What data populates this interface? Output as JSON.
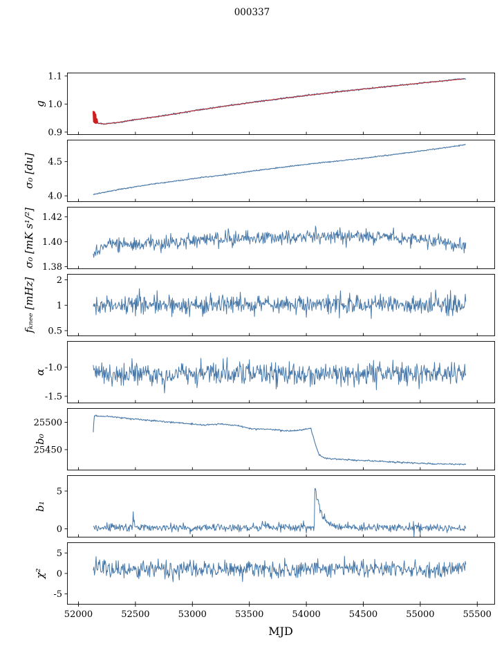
{
  "title": "000337",
  "xlabel": "MJD",
  "colors": {
    "line": "#4878a8",
    "fit": "#cc2020",
    "axis": "#000000"
  },
  "layout": {
    "xlim": [
      51900,
      55650
    ],
    "xticks": [
      52000,
      52500,
      53000,
      53500,
      54000,
      54500,
      55000,
      55500
    ],
    "xticklabels": [
      "52000",
      "52500",
      "53000",
      "53500",
      "54000",
      "54500",
      "55000",
      "55500"
    ]
  },
  "chart_data": [
    {
      "name": "gain",
      "type": "line",
      "ylabel": "g",
      "yscale": "linear",
      "ylim": [
        0.89,
        1.112
      ],
      "yticks": [
        0.9,
        1.0,
        1.1
      ],
      "yticklabels": [
        "0.9",
        "1.0",
        "1.1"
      ],
      "show_xticklabels": false,
      "series": [
        {
          "name": "gain-data",
          "color": "#4878a8",
          "width": 1.3,
          "seed": 11,
          "step": 4,
          "noise": 0.0012,
          "base": [
            [
              52130,
              0.966
            ],
            [
              52148,
              0.934
            ],
            [
              52220,
              0.9285
            ],
            [
              52350,
              0.9345
            ],
            [
              52500,
              0.9445
            ],
            [
              52750,
              0.9585
            ],
            [
              53000,
              0.9755
            ],
            [
              53250,
              0.9905
            ],
            [
              53500,
              1.0045
            ],
            [
              53750,
              1.018
            ],
            [
              54000,
              1.0305
            ],
            [
              54250,
              1.0425
            ],
            [
              54500,
              1.0535
            ],
            [
              54750,
              1.064
            ],
            [
              55000,
              1.0745
            ],
            [
              55200,
              1.0825
            ],
            [
              55400,
              1.0905
            ]
          ]
        },
        {
          "name": "gain-fit",
          "color": "#cc2020",
          "width": 1.0,
          "seed": 12,
          "step": 25,
          "noise": 0,
          "base": [
            [
              52130,
              0.966
            ],
            [
              52148,
              0.934
            ],
            [
              52220,
              0.9285
            ],
            [
              52350,
              0.9345
            ],
            [
              52500,
              0.9445
            ],
            [
              52750,
              0.9585
            ],
            [
              53000,
              0.9755
            ],
            [
              53250,
              0.9905
            ],
            [
              53500,
              1.0045
            ],
            [
              53750,
              1.018
            ],
            [
              54000,
              1.0305
            ],
            [
              54250,
              1.0425
            ],
            [
              54500,
              1.0535
            ],
            [
              54750,
              1.064
            ],
            [
              55000,
              1.0745
            ],
            [
              55200,
              1.0825
            ],
            [
              55400,
              1.0905
            ]
          ]
        },
        {
          "name": "gain-fit-start",
          "color": "#cc2020",
          "width": 2.6,
          "points": [
            [
              52132,
              0.975
            ],
            [
              52136,
              0.937
            ],
            [
              52140,
              0.97
            ],
            [
              52144,
              0.934
            ],
            [
              52149,
              0.963
            ],
            [
              52154,
              0.9325
            ],
            [
              52160,
              0.946
            ],
            [
              52166,
              0.9335
            ]
          ]
        }
      ]
    },
    {
      "name": "sigma0-du",
      "type": "line",
      "ylabel": "σ₀ [du]",
      "yscale": "linear",
      "ylim": [
        3.91,
        4.82
      ],
      "yticks": [
        4.0,
        4.5
      ],
      "yticklabels": [
        "4.0",
        "4.5"
      ],
      "show_xticklabels": false,
      "series": [
        {
          "name": "sigma0-du-data",
          "color": "#4878a8",
          "width": 1.1,
          "seed": 21,
          "step": 4,
          "noise": 0.004,
          "base": [
            [
              52130,
              4.02
            ],
            [
              52250,
              4.06
            ],
            [
              52400,
              4.105
            ],
            [
              52600,
              4.16
            ],
            [
              52800,
              4.205
            ],
            [
              53000,
              4.25
            ],
            [
              53250,
              4.3
            ],
            [
              53500,
              4.355
            ],
            [
              53750,
              4.41
            ],
            [
              54000,
              4.46
            ],
            [
              54250,
              4.505
            ],
            [
              54500,
              4.55
            ],
            [
              54750,
              4.6
            ],
            [
              55000,
              4.655
            ],
            [
              55200,
              4.7
            ],
            [
              55400,
              4.75
            ]
          ]
        }
      ]
    },
    {
      "name": "sigma0-mk",
      "type": "line",
      "ylabel": "σ₀ [mK s¹/²]",
      "yscale": "linear",
      "ylim": [
        1.378,
        1.428
      ],
      "yticks": [
        1.38,
        1.4,
        1.42
      ],
      "yticklabels": [
        "1.38",
        "1.40",
        "1.42"
      ],
      "show_xticklabels": false,
      "series": [
        {
          "name": "sigma0-mk-data",
          "color": "#4878a8",
          "width": 1.0,
          "seed": 31,
          "step": 5,
          "noise": 0.0028,
          "base": [
            [
              52130,
              1.389
            ],
            [
              52200,
              1.3955
            ],
            [
              52300,
              1.399
            ],
            [
              52450,
              1.3975
            ],
            [
              52600,
              1.3995
            ],
            [
              52800,
              1.3985
            ],
            [
              53000,
              1.4005
            ],
            [
              53200,
              1.4025
            ],
            [
              53400,
              1.4015
            ],
            [
              53700,
              1.4035
            ],
            [
              54000,
              1.4035
            ],
            [
              54300,
              1.4045
            ],
            [
              54600,
              1.4045
            ],
            [
              54900,
              1.4025
            ],
            [
              55100,
              1.4005
            ],
            [
              55300,
              1.3985
            ],
            [
              55400,
              1.397
            ]
          ]
        }
      ]
    },
    {
      "name": "fknee",
      "type": "line",
      "ylabel": "fₖₙₑₑ [mHz]",
      "yscale": "log",
      "ylim": [
        0.43,
        2.35
      ],
      "yticks": [
        2,
        1,
        0.5
      ],
      "yticklabels": [
        "2",
        "1",
        "0.5"
      ],
      "show_xticklabels": false,
      "series": [
        {
          "name": "fknee-data",
          "color": "#4878a8",
          "width": 1.0,
          "seed": 41,
          "step": 5,
          "lognoise": 0.13,
          "burst": {
            "p": 0.025,
            "max": 0.55
          },
          "base": [
            [
              52130,
              1.04
            ],
            [
              55400,
              1.0
            ]
          ]
        }
      ]
    },
    {
      "name": "alpha",
      "type": "line",
      "ylabel": "α",
      "yscale": "linear",
      "ylim": [
        -1.62,
        -0.55
      ],
      "yticks": [
        -1.0,
        -1.5
      ],
      "yticklabels": [
        "-1.0",
        "-1.5"
      ],
      "show_xticklabels": false,
      "series": [
        {
          "name": "alpha-data",
          "color": "#4878a8",
          "width": 1.0,
          "seed": 51,
          "step": 5,
          "noise": 0.095,
          "base": [
            [
              52130,
              -1.13
            ],
            [
              55400,
              -1.11
            ]
          ]
        }
      ]
    },
    {
      "name": "b0",
      "type": "line",
      "ylabel": "b₀",
      "yscale": "linear",
      "ylim": [
        25412,
        25526
      ],
      "yticks": [
        25450,
        25500
      ],
      "yticklabels": [
        "25450",
        "25500"
      ],
      "show_xticklabels": false,
      "series": [
        {
          "name": "b0-data",
          "color": "#4878a8",
          "width": 1.1,
          "seed": 61,
          "step": 5,
          "noise": 0.7,
          "base": [
            [
              52130,
              25482
            ],
            [
              52138,
              25512
            ],
            [
              52300,
              25510
            ],
            [
              52500,
              25506
            ],
            [
              52700,
              25502
            ],
            [
              52900,
              25499
            ],
            [
              53100,
              25495
            ],
            [
              53250,
              25497
            ],
            [
              53400,
              25494
            ],
            [
              53520,
              25488
            ],
            [
              53700,
              25487
            ],
            [
              53850,
              25484
            ],
            [
              53950,
              25486
            ],
            [
              54040,
              25489
            ],
            [
              54070,
              25466
            ],
            [
              54110,
              25441
            ],
            [
              54160,
              25434
            ],
            [
              54300,
              25432
            ],
            [
              54500,
              25430
            ],
            [
              54700,
              25428
            ],
            [
              54900,
              25426
            ],
            [
              55100,
              25424
            ],
            [
              55400,
              25423
            ]
          ]
        }
      ]
    },
    {
      "name": "b1",
      "type": "line",
      "ylabel": "b₁",
      "yscale": "linear",
      "ylim": [
        -1.15,
        7.1
      ],
      "yticks": [
        0,
        5
      ],
      "yticklabels": [
        "0",
        "5"
      ],
      "show_xticklabels": false,
      "series": [
        {
          "name": "b1-data",
          "color": "#4878a8",
          "width": 1.0,
          "seed": 71,
          "step": 5,
          "noise": 0.28,
          "spikes": [
            {
              "x": 52480,
              "amp": 1.9,
              "decay": 10
            },
            {
              "x": 53610,
              "amp": 0.65,
              "decay": 25
            },
            {
              "x": 53950,
              "amp": 0.5,
              "decay": 18
            },
            {
              "x": 54072,
              "amp": 5.9,
              "decay": 55
            }
          ],
          "base": [
            [
              52130,
              0.18
            ],
            [
              55400,
              0.15
            ]
          ]
        }
      ]
    },
    {
      "name": "chi2",
      "type": "line",
      "ylabel": "χ²",
      "yscale": "linear",
      "ylim": [
        -7.6,
        7.6
      ],
      "yticks": [
        5,
        0,
        -5
      ],
      "yticklabels": [
        "5",
        "0",
        "-5"
      ],
      "show_xticklabels": true,
      "series": [
        {
          "name": "chi2-data",
          "color": "#4878a8",
          "width": 1.0,
          "seed": 81,
          "step": 5,
          "noise": 1.05,
          "base": [
            [
              52130,
              1.0
            ],
            [
              55400,
              1.2
            ]
          ]
        }
      ]
    }
  ]
}
